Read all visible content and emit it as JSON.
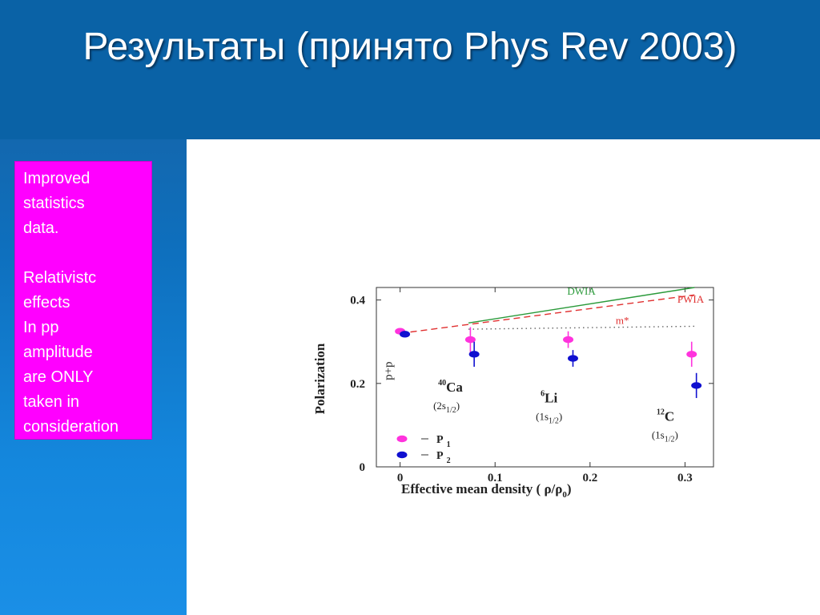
{
  "slide": {
    "title": "Результаты (принято Phys Rev 2003)",
    "note_lines": [
      "Improved",
      "statistics",
      "data.",
      "",
      "Relativistc",
      "effects",
      "In pp",
      "amplitude",
      "are ONLY",
      "taken in",
      "consideration"
    ]
  },
  "colors": {
    "title_bar": "#0a62a6",
    "note_box": "#ff00ff",
    "p1": "#ff33dd",
    "p2": "#1010d0",
    "dwia": "#2a9a3a",
    "pwia": "#e03030",
    "mstar": "#666666"
  },
  "chart_data": {
    "type": "scatter",
    "xlabel": "Effective mean density",
    "xlabel_formula": "( ρ/ρ",
    "xlabel_sub": "0",
    "xlabel_close": ")",
    "ylabel": "Polarization",
    "xlim": [
      -0.025,
      0.33
    ],
    "ylim": [
      0,
      0.43
    ],
    "x_ticks": [
      "0",
      "0.1",
      "0.2",
      "0.3"
    ],
    "y_ticks": [
      "0",
      "0.2",
      "0.4"
    ],
    "x_tick_values": [
      0,
      0.1,
      0.2,
      0.3
    ],
    "y_tick_values": [
      0,
      0.2,
      0.4
    ],
    "series": [
      {
        "name": "P",
        "sub": "1",
        "marker": "p1",
        "points": [
          {
            "x": 0.0,
            "y": 0.325,
            "err": 0.006
          },
          {
            "x": 0.074,
            "y": 0.305,
            "err": 0.03
          },
          {
            "x": 0.177,
            "y": 0.305,
            "err": 0.02
          },
          {
            "x": 0.307,
            "y": 0.27,
            "err": 0.03
          }
        ]
      },
      {
        "name": "P",
        "sub": "2",
        "marker": "p2",
        "points": [
          {
            "x": 0.005,
            "y": 0.318,
            "err": 0.006
          },
          {
            "x": 0.078,
            "y": 0.27,
            "err": 0.03
          },
          {
            "x": 0.182,
            "y": 0.26,
            "err": 0.02
          },
          {
            "x": 0.312,
            "y": 0.195,
            "err": 0.03
          }
        ]
      }
    ],
    "lines": [
      {
        "name": "DWIA",
        "style": "solid",
        "color_key": "dwia",
        "from": [
          0.072,
          0.345
        ],
        "to": [
          0.31,
          0.43
        ]
      },
      {
        "name": "PWIA",
        "style": "dashed",
        "color_key": "pwia",
        "from": [
          0.0,
          0.32
        ],
        "to": [
          0.31,
          0.412
        ]
      },
      {
        "name": "m*",
        "style": "dotted",
        "color_key": "mstar",
        "from": [
          0.072,
          0.33
        ],
        "to": [
          0.31,
          0.337
        ]
      }
    ],
    "annotations": [
      {
        "id": "pp",
        "text": "p+p",
        "x": -0.012,
        "y": 0.23
      },
      {
        "id": "ca",
        "text": "Ca",
        "sup": "40",
        "state": "(2s",
        "state_sub": "1/2",
        "x": 0.04,
        "y": 0.18
      },
      {
        "id": "li",
        "text": "Li",
        "sup": "6",
        "state": "(1s",
        "state_sub": "1/2",
        "x": 0.148,
        "y": 0.155
      },
      {
        "id": "c",
        "text": "C",
        "sup": "12",
        "state": "(1s",
        "state_sub": "1/2",
        "x": 0.27,
        "y": 0.11
      }
    ],
    "legend_position": "bottom-left"
  }
}
